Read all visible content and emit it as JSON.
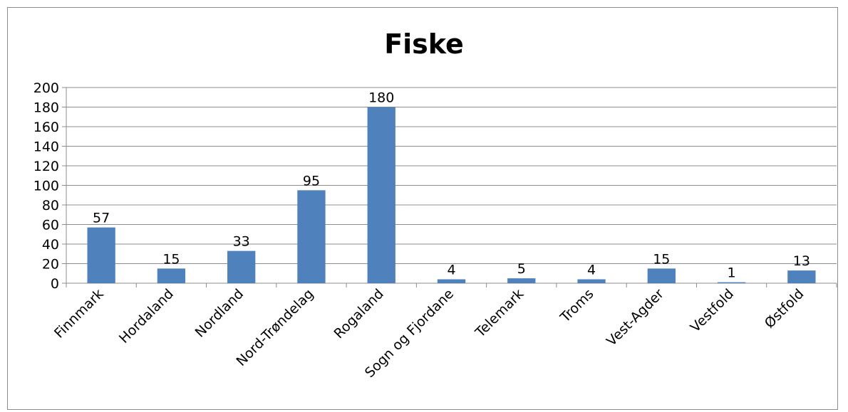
{
  "chart_data": {
    "type": "bar",
    "title": "Fiske",
    "categories": [
      "Finnmark",
      "Hordaland",
      "Nordland",
      "Nord-Trøndelag",
      "Rogaland",
      "Sogn og Fjordane",
      "Telemark",
      "Troms",
      "Vest-Agder",
      "Vestfold",
      "Østfold"
    ],
    "values": [
      57,
      15,
      33,
      95,
      180,
      4,
      5,
      4,
      15,
      1,
      13
    ],
    "ylim": [
      0,
      200
    ],
    "yticks": [
      0,
      20,
      40,
      60,
      80,
      100,
      120,
      140,
      160,
      180,
      200
    ],
    "grid": true,
    "legend": "none",
    "bar_color": "#4F81BD"
  }
}
